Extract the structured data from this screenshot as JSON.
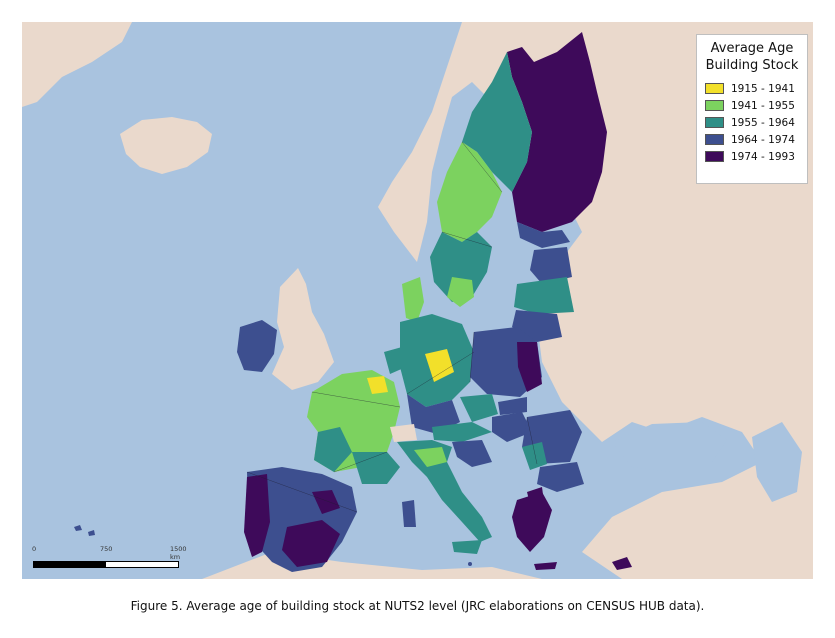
{
  "legend": {
    "title_line1": "Average Age",
    "title_line2": "Building Stock",
    "items": [
      {
        "label": "1915 - 1941",
        "color": "#f2e02a"
      },
      {
        "label": "1941 - 1955",
        "color": "#7cd25f"
      },
      {
        "label": "1955 - 1964",
        "color": "#2f8f87"
      },
      {
        "label": "1964 - 1974",
        "color": "#3d4f8f"
      },
      {
        "label": "1974 - 1993",
        "color": "#3e0a5a"
      }
    ]
  },
  "scale": {
    "label_start": "0",
    "label_mid": "750",
    "label_end": "1500 km"
  },
  "caption": "Figure 5. Average age of building stock at NUTS2 level (JRC elaborations on CENSUS HUB data).",
  "colors": {
    "sea": "#a9c3df",
    "land_outside": "#ead9cc"
  }
}
